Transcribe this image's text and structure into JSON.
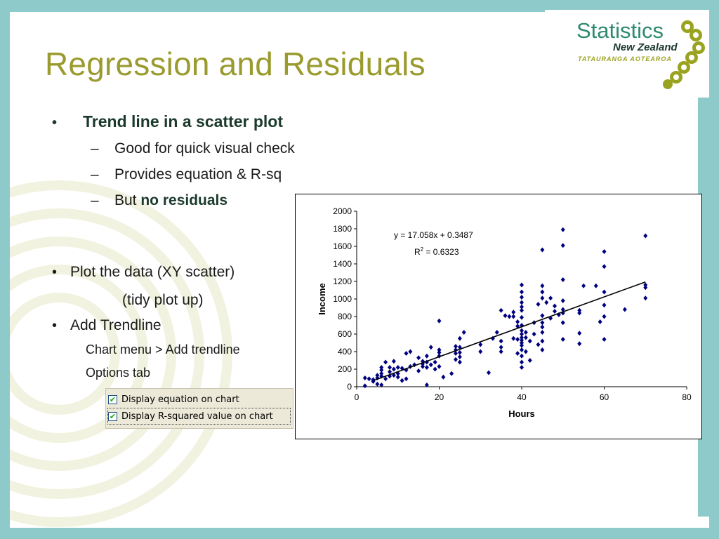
{
  "title": "Regression and Residuals",
  "bullets": {
    "main": "Trend line in a scatter plot",
    "subs": [
      "Good for quick visual check",
      "Provides equation & R-sq",
      "But "
    ],
    "sub3_bold": "no residuals",
    "plot_data": "Plot the data (XY scatter)",
    "plot_data_cont": "(tidy plot up)",
    "add_trendline": "Add Trendline",
    "chart_menu": "Chart menu > Add trendline",
    "options_tab": "Options tab",
    "bullet_char": "•",
    "dash_char": "–"
  },
  "options": {
    "display_equation": "Display equation on chart",
    "display_rsq": "Display R-squared value on chart",
    "equation_checked": true,
    "rsq_checked": true
  },
  "logo": {
    "line1": "Statistics",
    "line2": "New Zealand",
    "line3": "TATAURANGA AOTEAROA"
  },
  "colors": {
    "title": "#9a9a2e",
    "frame": "#8fcacb",
    "points": "#00007f",
    "logo_green": "#2d8a6e",
    "logo_olive": "#9aa31f"
  },
  "chart_data": {
    "type": "scatter",
    "xlabel": "Hours",
    "ylabel": "Income",
    "xlim": [
      0,
      80
    ],
    "ylim": [
      0,
      2000
    ],
    "xticks": [
      0,
      20,
      40,
      60,
      80
    ],
    "yticks": [
      0,
      200,
      400,
      600,
      800,
      1000,
      1200,
      1400,
      1600,
      1800,
      2000
    ],
    "equation": "y = 17.058x + 0.3487",
    "r2_base": "R",
    "r2_sup": "2",
    "r2_value": " = 0.6323",
    "trendline": {
      "slope": 17.058,
      "intercept": 0.3487,
      "x_range": [
        4,
        70
      ]
    },
    "grid": false,
    "legend": "none",
    "points": [
      [
        2,
        10
      ],
      [
        2,
        100
      ],
      [
        3,
        90
      ],
      [
        4,
        60
      ],
      [
        4,
        80
      ],
      [
        5,
        30
      ],
      [
        5,
        100
      ],
      [
        5,
        130
      ],
      [
        6,
        20
      ],
      [
        6,
        120
      ],
      [
        6,
        150
      ],
      [
        6,
        190
      ],
      [
        6,
        220
      ],
      [
        7,
        90
      ],
      [
        7,
        280
      ],
      [
        8,
        120
      ],
      [
        8,
        170
      ],
      [
        8,
        220
      ],
      [
        9,
        130
      ],
      [
        9,
        200
      ],
      [
        9,
        290
      ],
      [
        10,
        110
      ],
      [
        10,
        150
      ],
      [
        10,
        220
      ],
      [
        11,
        70
      ],
      [
        11,
        210
      ],
      [
        12,
        90
      ],
      [
        12,
        190
      ],
      [
        12,
        380
      ],
      [
        13,
        230
      ],
      [
        13,
        400
      ],
      [
        14,
        250
      ],
      [
        15,
        180
      ],
      [
        15,
        330
      ],
      [
        16,
        230
      ],
      [
        16,
        260
      ],
      [
        16,
        290
      ],
      [
        17,
        20
      ],
      [
        17,
        220
      ],
      [
        17,
        280
      ],
      [
        17,
        350
      ],
      [
        18,
        250
      ],
      [
        18,
        450
      ],
      [
        19,
        200
      ],
      [
        19,
        280
      ],
      [
        20,
        230
      ],
      [
        20,
        350
      ],
      [
        20,
        390
      ],
      [
        20,
        420
      ],
      [
        20,
        750
      ],
      [
        21,
        110
      ],
      [
        23,
        150
      ],
      [
        24,
        310
      ],
      [
        24,
        380
      ],
      [
        24,
        420
      ],
      [
        24,
        460
      ],
      [
        25,
        280
      ],
      [
        25,
        340
      ],
      [
        25,
        390
      ],
      [
        25,
        450
      ],
      [
        25,
        550
      ],
      [
        26,
        620
      ],
      [
        30,
        400
      ],
      [
        30,
        480
      ],
      [
        32,
        160
      ],
      [
        33,
        550
      ],
      [
        34,
        620
      ],
      [
        35,
        400
      ],
      [
        35,
        450
      ],
      [
        35,
        520
      ],
      [
        35,
        870
      ],
      [
        36,
        810
      ],
      [
        37,
        800
      ],
      [
        38,
        550
      ],
      [
        38,
        800
      ],
      [
        38,
        850
      ],
      [
        39,
        380
      ],
      [
        39,
        540
      ],
      [
        39,
        690
      ],
      [
        39,
        740
      ],
      [
        40,
        220
      ],
      [
        40,
        280
      ],
      [
        40,
        350
      ],
      [
        40,
        420
      ],
      [
        40,
        470
      ],
      [
        40,
        500
      ],
      [
        40,
        530
      ],
      [
        40,
        560
      ],
      [
        40,
        600
      ],
      [
        40,
        640
      ],
      [
        40,
        700
      ],
      [
        40,
        790
      ],
      [
        40,
        870
      ],
      [
        40,
        910
      ],
      [
        40,
        960
      ],
      [
        40,
        1020
      ],
      [
        40,
        1080
      ],
      [
        40,
        1160
      ],
      [
        41,
        400
      ],
      [
        41,
        560
      ],
      [
        41,
        620
      ],
      [
        42,
        300
      ],
      [
        42,
        520
      ],
      [
        43,
        600
      ],
      [
        43,
        730
      ],
      [
        44,
        480
      ],
      [
        44,
        940
      ],
      [
        45,
        420
      ],
      [
        45,
        520
      ],
      [
        45,
        620
      ],
      [
        45,
        680
      ],
      [
        45,
        730
      ],
      [
        45,
        810
      ],
      [
        45,
        1010
      ],
      [
        45,
        1080
      ],
      [
        45,
        1150
      ],
      [
        45,
        1560
      ],
      [
        46,
        960
      ],
      [
        47,
        780
      ],
      [
        47,
        1010
      ],
      [
        48,
        860
      ],
      [
        48,
        920
      ],
      [
        49,
        820
      ],
      [
        50,
        540
      ],
      [
        50,
        730
      ],
      [
        50,
        840
      ],
      [
        50,
        880
      ],
      [
        50,
        980
      ],
      [
        50,
        1220
      ],
      [
        50,
        1610
      ],
      [
        50,
        1790
      ],
      [
        54,
        490
      ],
      [
        54,
        610
      ],
      [
        54,
        840
      ],
      [
        54,
        870
      ],
      [
        55,
        1150
      ],
      [
        58,
        1150
      ],
      [
        59,
        740
      ],
      [
        60,
        540
      ],
      [
        60,
        800
      ],
      [
        60,
        930
      ],
      [
        60,
        1080
      ],
      [
        60,
        1370
      ],
      [
        60,
        1540
      ],
      [
        65,
        880
      ],
      [
        70,
        1010
      ],
      [
        70,
        1130
      ],
      [
        70,
        1160
      ],
      [
        70,
        1720
      ]
    ]
  }
}
